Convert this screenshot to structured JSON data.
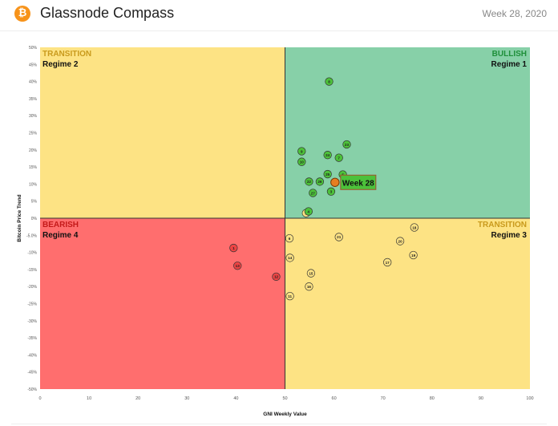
{
  "header": {
    "logo_glyph": "₿",
    "title": "Glassnode Compass",
    "week": "Week 28, 2020"
  },
  "colors": {
    "bullish": "#87d0a8",
    "transition": "#fde384",
    "bearish": "#ff6e6e",
    "point_green": "#4cc13a",
    "point_yellow": "#fde384",
    "point_red": "#ee4444",
    "current_week": "#e67e22"
  },
  "chart_data": {
    "type": "scatter",
    "xlabel": "GNI  Weekly Value",
    "ylabel": "Bitcoin  Price Trend",
    "xlim": [
      0,
      100
    ],
    "ylim": [
      -50,
      50
    ],
    "x_ticks": [
      0,
      10,
      20,
      30,
      40,
      50,
      60,
      70,
      80,
      90,
      100
    ],
    "y_ticks": [
      {
        "v": 50,
        "label": "50%"
      },
      {
        "v": 45,
        "label": "45%"
      },
      {
        "v": 40,
        "label": "40%"
      },
      {
        "v": 35,
        "label": "35%"
      },
      {
        "v": 30,
        "label": "30%"
      },
      {
        "v": 25,
        "label": "25%"
      },
      {
        "v": 20,
        "label": "20%"
      },
      {
        "v": 15,
        "label": "15%"
      },
      {
        "v": 10,
        "label": "10%"
      },
      {
        "v": 5,
        "label": "5%"
      },
      {
        "v": 0,
        "label": "0%"
      },
      {
        "v": -5,
        "label": "-5.0%"
      },
      {
        "v": -10,
        "label": "-10%"
      },
      {
        "v": -15,
        "label": "-15%"
      },
      {
        "v": -20,
        "label": "-20%"
      },
      {
        "v": -25,
        "label": "-25%"
      },
      {
        "v": -30,
        "label": "-30%"
      },
      {
        "v": -35,
        "label": "-35%"
      },
      {
        "v": -40,
        "label": "-40%"
      },
      {
        "v": -45,
        "label": "-45%"
      },
      {
        "v": -50,
        "label": "-50%"
      }
    ],
    "quadrants": [
      {
        "key": "transition_top",
        "name": "TRANSITION",
        "regime": "Regime 2",
        "color_key": "transition",
        "name_color": "#c99a1c",
        "align": "left"
      },
      {
        "key": "bullish",
        "name": "BULLISH",
        "regime": "Regime 1",
        "color_key": "bullish",
        "name_color": "#1e8f3a",
        "align": "right"
      },
      {
        "key": "bearish",
        "name": "BEARISH",
        "regime": "Regime 4",
        "color_key": "bearish",
        "name_color": "#c41a1a",
        "align": "left"
      },
      {
        "key": "transition_bottom",
        "name": "TRANSITION",
        "regime": "Regime 3",
        "color_key": "transition",
        "name_color": "#c99a1c",
        "align": "right"
      }
    ],
    "points": [
      {
        "label": "1",
        "x": 39.5,
        "y": -8.7,
        "color_key": "point_red"
      },
      {
        "label": "13",
        "x": 40.3,
        "y": -13.9,
        "color_key": "point_red"
      },
      {
        "label": "12",
        "x": 48.2,
        "y": -17.1,
        "color_key": "point_red"
      },
      {
        "label": "2",
        "x": 54.3,
        "y": 1.5,
        "color_key": "point_yellow"
      },
      {
        "label": "6",
        "x": 50.9,
        "y": -5.9,
        "color_key": "point_yellow"
      },
      {
        "label": "14",
        "x": 51.0,
        "y": -11.6,
        "color_key": "point_yellow"
      },
      {
        "label": "15",
        "x": 55.3,
        "y": -16.1,
        "color_key": "point_yellow"
      },
      {
        "label": "16",
        "x": 54.9,
        "y": -20.0,
        "color_key": "point_yellow"
      },
      {
        "label": "11",
        "x": 51.0,
        "y": -22.8,
        "color_key": "point_yellow"
      },
      {
        "label": "21",
        "x": 61.0,
        "y": -5.5,
        "color_key": "point_yellow"
      },
      {
        "label": "18",
        "x": 76.4,
        "y": -2.7,
        "color_key": "point_yellow"
      },
      {
        "label": "20",
        "x": 73.5,
        "y": -6.7,
        "color_key": "point_yellow"
      },
      {
        "label": "19",
        "x": 76.2,
        "y": -10.8,
        "color_key": "point_yellow"
      },
      {
        "label": "17",
        "x": 70.9,
        "y": -12.9,
        "color_key": "point_yellow"
      },
      {
        "label": "8",
        "x": 59.0,
        "y": 40.0,
        "color_key": "point_green"
      },
      {
        "label": "23",
        "x": 62.6,
        "y": 21.6,
        "color_key": "point_green"
      },
      {
        "label": "9",
        "x": 53.4,
        "y": 19.6,
        "color_key": "point_green"
      },
      {
        "label": "24",
        "x": 58.7,
        "y": 18.5,
        "color_key": "point_green"
      },
      {
        "label": "7",
        "x": 61.0,
        "y": 17.7,
        "color_key": "point_green"
      },
      {
        "label": "10",
        "x": 53.4,
        "y": 16.5,
        "color_key": "point_green"
      },
      {
        "label": "25",
        "x": 58.7,
        "y": 12.9,
        "color_key": "point_green"
      },
      {
        "label": "5",
        "x": 61.8,
        "y": 12.8,
        "color_key": "point_green"
      },
      {
        "label": "22",
        "x": 54.9,
        "y": 10.7,
        "color_key": "point_green"
      },
      {
        "label": "26",
        "x": 57.1,
        "y": 10.7,
        "color_key": "point_green"
      },
      {
        "label": "27",
        "x": 55.7,
        "y": 7.4,
        "color_key": "point_green"
      },
      {
        "label": "3",
        "x": 59.4,
        "y": 7.8,
        "color_key": "point_green"
      },
      {
        "label": "4",
        "x": 54.8,
        "y": 2.0,
        "color_key": "point_green"
      }
    ],
    "current": {
      "label": "Week 28",
      "x": 60.2,
      "y": 10.5
    }
  }
}
